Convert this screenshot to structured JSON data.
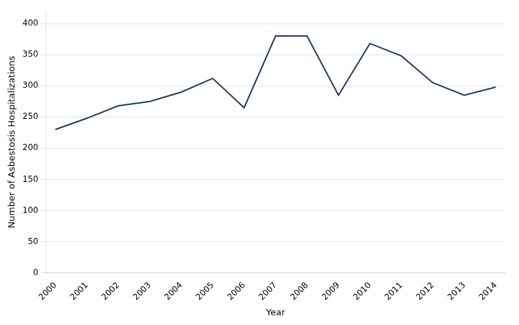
{
  "chart_data": {
    "type": "line",
    "xlabel": "Year",
    "ylabel": "Number of Asbestosis Hospitalizations",
    "x": [
      2000,
      2001,
      2002,
      2003,
      2004,
      2005,
      2006,
      2007,
      2008,
      2009,
      2010,
      2011,
      2012,
      2013,
      2014
    ],
    "values": [
      230,
      248,
      268,
      275,
      290,
      312,
      265,
      380,
      380,
      285,
      368,
      348,
      305,
      285,
      298
    ],
    "color": "#1F3864",
    "xlim": [
      1999.7,
      2014.3
    ],
    "xticks": [
      2000,
      2001,
      2002,
      2003,
      2004,
      2005,
      2006,
      2007,
      2008,
      2009,
      2010,
      2011,
      2012,
      2013,
      2014
    ],
    "ylim": [
      0,
      420
    ],
    "yticks": [
      0,
      50,
      100,
      150,
      200,
      250,
      300,
      350,
      400
    ],
    "grid": true
  }
}
